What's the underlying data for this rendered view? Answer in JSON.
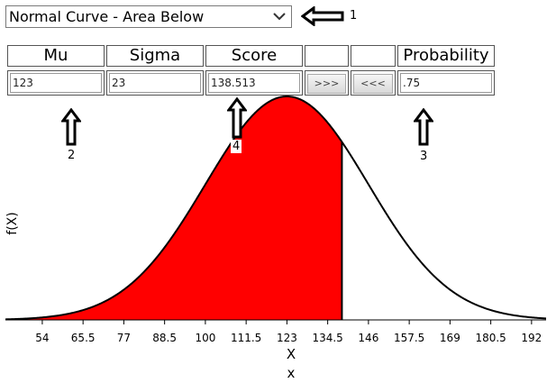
{
  "mode_select": {
    "selected": "Normal Curve - Area Below"
  },
  "columns": {
    "mu": {
      "header": "Mu",
      "value": "123"
    },
    "sigma": {
      "header": "Sigma",
      "value": "23"
    },
    "score": {
      "header": "Score",
      "value": "138.513"
    },
    "forward_button": {
      "header": "",
      "label": ">>>"
    },
    "back_button": {
      "header": "",
      "label": "<<<"
    },
    "probability": {
      "header": "Probability",
      "value": ".75"
    }
  },
  "callouts": {
    "c1": "1",
    "c2": "2",
    "c3": "3",
    "c4": "4"
  },
  "chart_data": {
    "type": "area",
    "distribution": "normal",
    "mu": 123,
    "sigma": 23,
    "shade_below": 138.513,
    "xlim": [
      43.6,
      196.1
    ],
    "x_ticks": [
      "54",
      "65.5",
      "77",
      "88.5",
      "100",
      "111.5",
      "123",
      "134.5",
      "146",
      "157.5",
      "169",
      "180.5",
      "192"
    ],
    "xlabel": "X",
    "xlabel_secondary": "x",
    "ylabel": "f(X)",
    "grid": false,
    "colors": {
      "fill": "#ff0000",
      "curve": "#000000"
    }
  }
}
